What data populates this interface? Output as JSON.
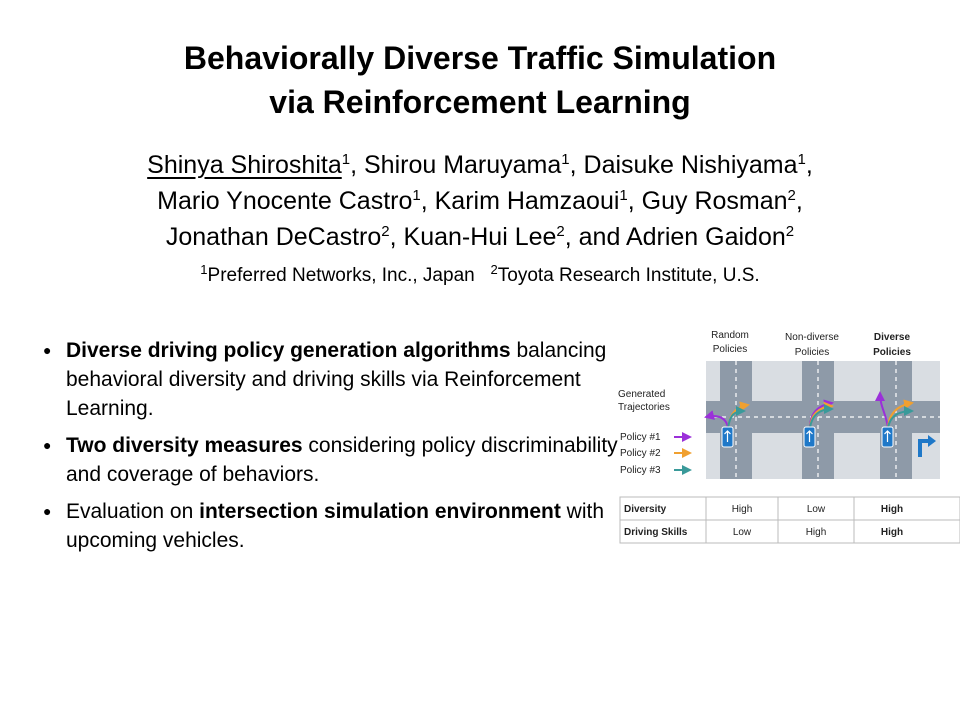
{
  "title": {
    "line1": "Behaviorally Diverse Traffic Simulation",
    "line2": "via Reinforcement Learning"
  },
  "authors": [
    {
      "name": "Shinya Shiroshita",
      "sup": "1",
      "sep": ", "
    },
    {
      "name": "Shirou Maruyama",
      "sup": "1",
      "sep": ", "
    },
    {
      "name": "Daisuke Nishiyama",
      "sup": "1",
      "sep": ","
    },
    {
      "name": "Mario Ynocente Castro",
      "sup": "1",
      "sep": ", "
    },
    {
      "name": "Karim Hamzaoui",
      "sup": "1",
      "sep": ", "
    },
    {
      "name": "Guy Rosman",
      "sup": "2",
      "sep": ","
    },
    {
      "name": "Jonathan DeCastro",
      "sup": "2",
      "sep": ", "
    },
    {
      "name": "Kuan-Hui Lee",
      "sup": "2",
      "sep": ", and "
    },
    {
      "name": "Adrien Gaidon",
      "sup": "2",
      "sep": ""
    }
  ],
  "affiliations": [
    {
      "sup": "1",
      "text": "Preferred Networks, Inc., Japan"
    },
    {
      "sup": "2",
      "text": "Toyota Research Institute, U.S."
    }
  ],
  "bullets": [
    {
      "bold": "Diverse driving policy generation algorithms",
      "rest": " balancing behavioral diversity and driving skills via Reinforcement Learning."
    },
    {
      "bold": "Two diversity measures",
      "rest": " considering policy discriminability and coverage of behaviors."
    },
    {
      "pre": "Evaluation on ",
      "bold": "intersection simulation environment",
      "rest": " with upcoming vehicles."
    }
  ],
  "figure": {
    "columns": [
      {
        "line1": "Random",
        "line2": "Policies"
      },
      {
        "line1": "Non-diverse",
        "line2": "Policies"
      },
      {
        "line1": "Diverse",
        "line2": "Policies"
      }
    ],
    "generated_label1": "Generated",
    "generated_label2": "Trajectories",
    "policies": [
      {
        "label": "Policy #1",
        "color": "#9b30d9"
      },
      {
        "label": "Policy #2",
        "color": "#f0a030"
      },
      {
        "label": "Policy #3",
        "color": "#3a9a9a"
      }
    ],
    "table": {
      "rows": [
        {
          "label": "Diversity",
          "values": [
            "High",
            "Low",
            "High"
          ]
        },
        {
          "label": "Driving Skills",
          "values": [
            "Low",
            "High",
            "High"
          ]
        }
      ]
    },
    "road_color": "#8e9aa8",
    "car_color": "#1f78c8"
  }
}
